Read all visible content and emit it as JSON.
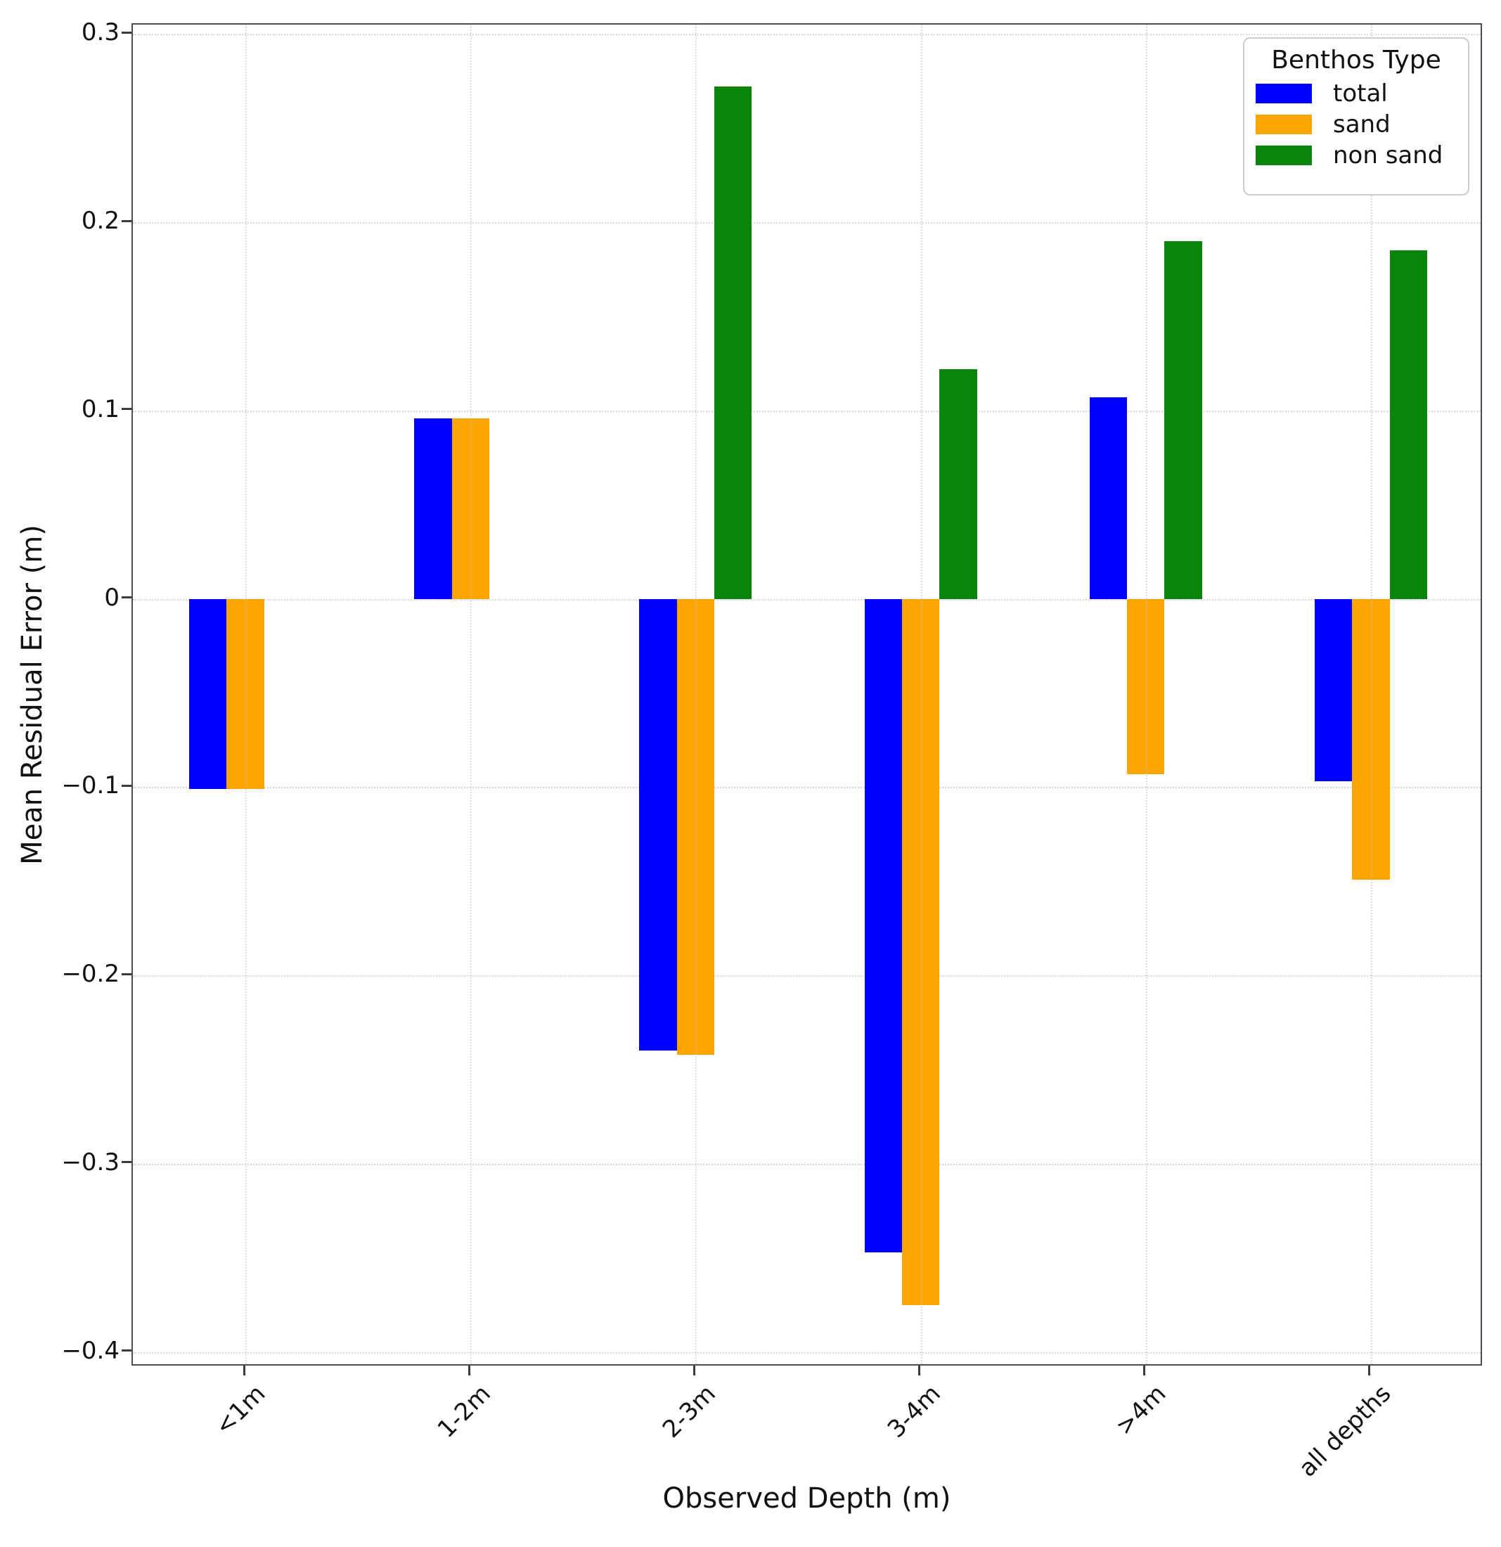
{
  "figure": {
    "xlabel": "Observed Depth (m)",
    "ylabel": "Mean Residual Error (m)"
  },
  "legend": {
    "title": "Benthos Type",
    "items": [
      {
        "label": "total",
        "color": "#0000ff"
      },
      {
        "label": "sand",
        "color": "#ffa500"
      },
      {
        "label": "non sand",
        "color": "#0a840a"
      }
    ]
  },
  "chart_data": {
    "type": "bar",
    "title": "",
    "xlabel": "Observed Depth (m)",
    "ylabel": "Mean Residual Error (m)",
    "categories": [
      "<1m",
      "1-2m",
      "2-3m",
      "3-4m",
      ">4m",
      "all depths"
    ],
    "series": [
      {
        "name": "total",
        "color": "#0000ff",
        "values": [
          -0.101,
          0.096,
          -0.24,
          -0.347,
          0.107,
          -0.097
        ]
      },
      {
        "name": "sand",
        "color": "#ffa500",
        "values": [
          -0.101,
          0.096,
          -0.242,
          -0.375,
          -0.093,
          -0.149
        ]
      },
      {
        "name": "non sand",
        "color": "#0a840a",
        "values": [
          null,
          null,
          0.272,
          0.122,
          0.19,
          0.185
        ]
      }
    ],
    "ylim": [
      -0.408,
      0.305
    ],
    "yticks": [
      0.3,
      0.2,
      0.1,
      0,
      -0.1,
      -0.2,
      -0.3,
      -0.4
    ],
    "ytick_labels": [
      "0.3",
      "0.2",
      "0.1",
      "0",
      "−0.1",
      "−0.2",
      "−0.3",
      "−0.4"
    ],
    "grid": true,
    "legend_position": "upper right",
    "legend_title": "Benthos Type"
  }
}
